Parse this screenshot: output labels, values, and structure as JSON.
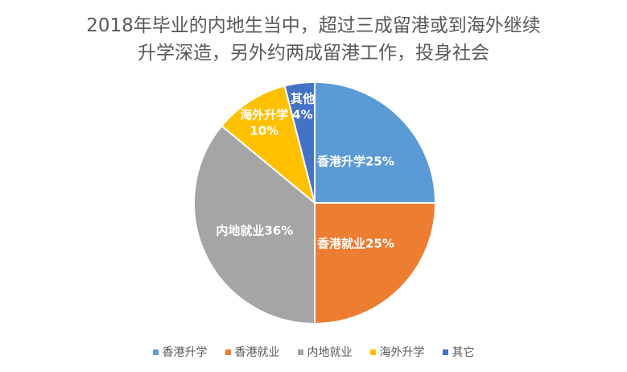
{
  "title": {
    "line1": "2018年毕业的内地生当中，超过三成留港或到海外继续",
    "line2": "升学深造，另外约两成留港工作，投身社会"
  },
  "chart_data": {
    "type": "pie",
    "title": "2018年毕业的内地生当中，超过三成留港或到海外继续升学深造，另外约两成留港工作，投身社会",
    "slices": [
      {
        "name": "香港升学",
        "label": "香港升学25%",
        "value": 25,
        "color": "#5B9BD5"
      },
      {
        "name": "香港就业",
        "label": "香港就业25%",
        "value": 25,
        "color": "#ED7D31"
      },
      {
        "name": "内地就业",
        "label": "内地就业36%",
        "value": 36,
        "color": "#A5A5A5"
      },
      {
        "name": "海外升学",
        "label_lines": [
          "海外升学",
          "10%"
        ],
        "value": 10,
        "color": "#FFC000"
      },
      {
        "name": "其他",
        "label_lines": [
          "其他",
          "4%"
        ],
        "value": 4,
        "color": "#4472C4"
      }
    ],
    "legend": {
      "position": "bottom",
      "entries": [
        {
          "label": "香港升学",
          "color": "#5B9BD5"
        },
        {
          "label": "香港就业",
          "color": "#ED7D31"
        },
        {
          "label": "内地就业",
          "color": "#A5A5A5"
        },
        {
          "label": "海外升学",
          "color": "#FFC000"
        },
        {
          "label": "其它",
          "color": "#4472C4"
        }
      ]
    },
    "start_angle": "12 o'clock",
    "direction": "clockwise"
  }
}
